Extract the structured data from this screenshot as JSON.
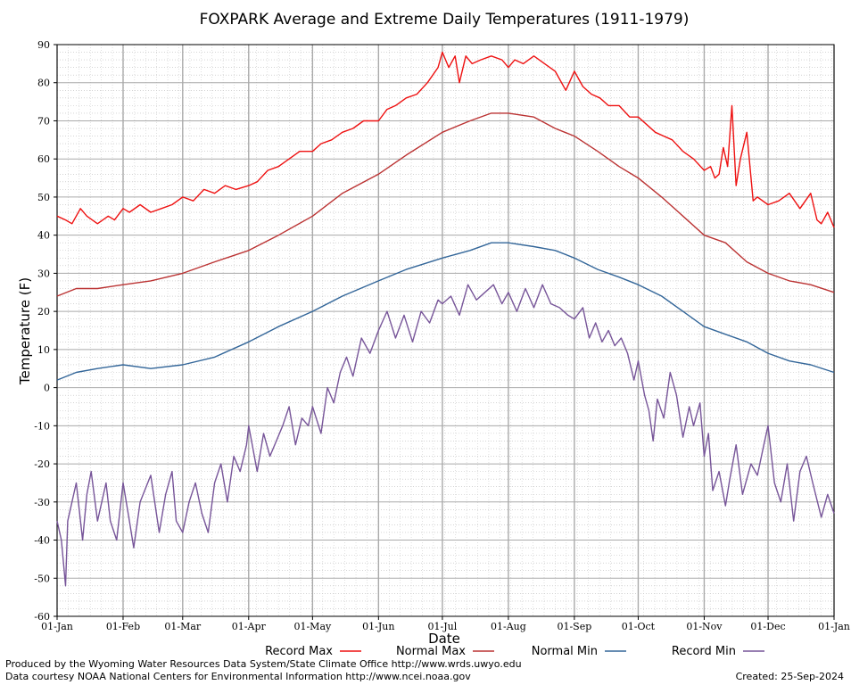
{
  "chart_data": {
    "type": "line",
    "title": "FOXPARK Average and Extreme Daily Temperatures (1911-1979)",
    "xlabel": "Date",
    "ylabel": "Temperature (F)",
    "ylim": [
      -60,
      90
    ],
    "yticks": [
      90,
      80,
      70,
      60,
      50,
      40,
      30,
      20,
      10,
      0,
      -10,
      -20,
      -30,
      -40,
      -50,
      -60
    ],
    "xticks": [
      "01-Jan",
      "01-Feb",
      "01-Mar",
      "01-Apr",
      "01-May",
      "01-Jun",
      "01-Jul",
      "01-Aug",
      "01-Sep",
      "01-Oct",
      "01-Nov",
      "01-Dec",
      "01-Jan"
    ],
    "xtick_days": [
      1,
      32,
      60,
      91,
      121,
      152,
      182,
      213,
      244,
      274,
      305,
      335,
      366
    ],
    "xlim_days": [
      1,
      366
    ],
    "grid": true,
    "legend_placement": "bottom",
    "series": [
      {
        "name": "Record Max",
        "color": "#ee1111",
        "x_days": [
          1,
          5,
          8,
          12,
          15,
          20,
          25,
          28,
          32,
          35,
          40,
          45,
          50,
          55,
          60,
          65,
          70,
          75,
          80,
          85,
          91,
          95,
          100,
          105,
          110,
          115,
          121,
          125,
          130,
          135,
          140,
          145,
          152,
          156,
          160,
          165,
          170,
          175,
          180,
          182,
          185,
          188,
          190,
          193,
          196,
          200,
          205,
          210,
          213,
          216,
          220,
          225,
          230,
          235,
          240,
          244,
          248,
          252,
          256,
          260,
          265,
          270,
          274,
          278,
          282,
          286,
          290,
          295,
          300,
          305,
          308,
          310,
          312,
          314,
          316,
          318,
          320,
          322,
          325,
          328,
          330,
          335,
          340,
          345,
          350,
          355,
          358,
          360,
          363,
          366
        ],
        "values": [
          45,
          44,
          43,
          47,
          45,
          43,
          45,
          44,
          47,
          46,
          48,
          46,
          47,
          48,
          50,
          49,
          52,
          51,
          53,
          52,
          53,
          54,
          57,
          58,
          60,
          62,
          62,
          64,
          65,
          67,
          68,
          70,
          70,
          73,
          74,
          76,
          77,
          80,
          84,
          88,
          84,
          87,
          80,
          87,
          85,
          86,
          87,
          86,
          84,
          86,
          85,
          87,
          85,
          83,
          78,
          83,
          79,
          77,
          76,
          74,
          74,
          71,
          71,
          69,
          67,
          66,
          65,
          62,
          60,
          57,
          58,
          55,
          56,
          63,
          58,
          74,
          53,
          60,
          67,
          49,
          50,
          48,
          49,
          51,
          47,
          51,
          44,
          43,
          46,
          42
        ]
      },
      {
        "name": "Normal Max",
        "color": "#bb3333",
        "x_days": [
          1,
          10,
          20,
          32,
          45,
          60,
          75,
          91,
          105,
          121,
          135,
          152,
          165,
          182,
          195,
          205,
          213,
          225,
          235,
          244,
          255,
          265,
          274,
          285,
          295,
          305,
          315,
          325,
          335,
          345,
          355,
          366
        ],
        "values": [
          24,
          26,
          26,
          27,
          28,
          30,
          33,
          36,
          40,
          45,
          51,
          56,
          61,
          67,
          70,
          72,
          72,
          71,
          68,
          66,
          62,
          58,
          55,
          50,
          45,
          40,
          38,
          33,
          30,
          28,
          27,
          25
        ]
      },
      {
        "name": "Normal Min",
        "color": "#336699",
        "x_days": [
          1,
          10,
          20,
          32,
          45,
          60,
          75,
          91,
          105,
          121,
          135,
          152,
          165,
          182,
          195,
          205,
          213,
          225,
          235,
          244,
          255,
          265,
          274,
          285,
          295,
          305,
          315,
          325,
          335,
          345,
          355,
          366
        ],
        "values": [
          2,
          4,
          5,
          6,
          5,
          6,
          8,
          12,
          16,
          20,
          24,
          28,
          31,
          34,
          36,
          38,
          38,
          37,
          36,
          34,
          31,
          29,
          27,
          24,
          20,
          16,
          14,
          12,
          9,
          7,
          6,
          4
        ]
      },
      {
        "name": "Record Min",
        "color": "#775599",
        "x_days": [
          1,
          3,
          5,
          6,
          8,
          10,
          13,
          15,
          17,
          20,
          24,
          26,
          29,
          32,
          35,
          37,
          40,
          45,
          49,
          52,
          55,
          57,
          60,
          63,
          66,
          69,
          72,
          75,
          78,
          81,
          84,
          87,
          90,
          91,
          95,
          98,
          101,
          104,
          107,
          110,
          113,
          116,
          119,
          121,
          125,
          128,
          131,
          134,
          137,
          140,
          144,
          148,
          152,
          156,
          160,
          164,
          168,
          172,
          176,
          180,
          182,
          186,
          190,
          194,
          198,
          202,
          206,
          210,
          213,
          217,
          221,
          225,
          229,
          233,
          237,
          241,
          244,
          248,
          251,
          254,
          257,
          260,
          263,
          266,
          269,
          272,
          274,
          277,
          279,
          281,
          283,
          286,
          289,
          292,
          295,
          298,
          300,
          303,
          305,
          307,
          309,
          312,
          315,
          317,
          320,
          323,
          327,
          330,
          333,
          335,
          338,
          341,
          344,
          347,
          350,
          353,
          356,
          360,
          363,
          366
        ],
        "values": [
          -35,
          -40,
          -52,
          -35,
          -30,
          -25,
          -40,
          -28,
          -22,
          -35,
          -25,
          -35,
          -40,
          -25,
          -35,
          -42,
          -30,
          -23,
          -38,
          -28,
          -22,
          -35,
          -38,
          -30,
          -25,
          -33,
          -38,
          -25,
          -20,
          -30,
          -18,
          -22,
          -15,
          -10,
          -22,
          -12,
          -18,
          -14,
          -10,
          -5,
          -15,
          -8,
          -10,
          -5,
          -12,
          0,
          -4,
          4,
          8,
          3,
          13,
          9,
          15,
          20,
          13,
          19,
          12,
          20,
          17,
          23,
          22,
          24,
          19,
          27,
          23,
          25,
          27,
          22,
          25,
          20,
          26,
          21,
          27,
          22,
          21,
          19,
          18,
          21,
          13,
          17,
          12,
          15,
          11,
          13,
          9,
          2,
          7,
          -2,
          -6,
          -14,
          -3,
          -8,
          4,
          -2,
          -13,
          -5,
          -10,
          -4,
          -18,
          -12,
          -27,
          -22,
          -31,
          -24,
          -15,
          -28,
          -20,
          -23,
          -15,
          -10,
          -25,
          -30,
          -20,
          -35,
          -22,
          -18,
          -25,
          -34,
          -28,
          -33
        ]
      }
    ],
    "annotations": {
      "credits_line1": "Produced by the Wyoming Water Resources Data System/State Climate Office http://www.wrds.uwyo.edu",
      "credits_line2": "Data courtesy NOAA National Centers for Environmental Information http://www.ncei.noaa.gov",
      "created": "Created:  25-Sep-2024"
    }
  }
}
